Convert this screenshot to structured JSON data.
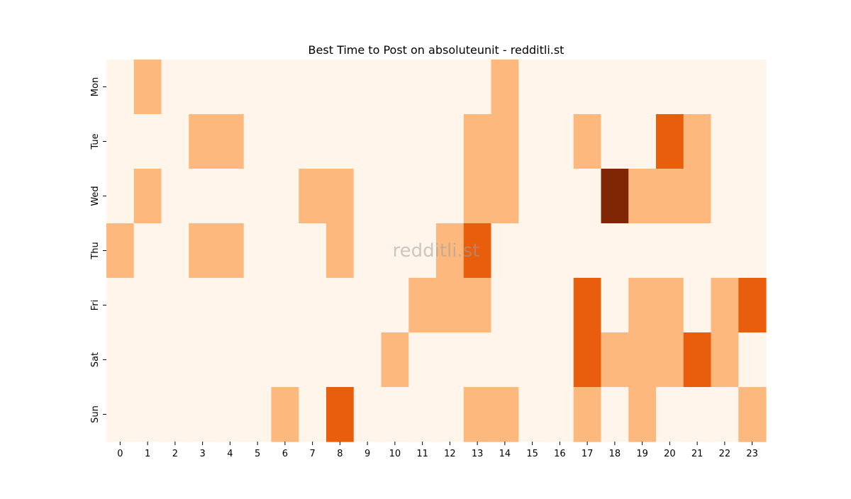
{
  "chart_data": {
    "type": "heatmap",
    "title": "Best Time to Post on absoluteunit - redditli.st",
    "watermark": "redditli.st",
    "x_categories": [
      "0",
      "1",
      "2",
      "3",
      "4",
      "5",
      "6",
      "7",
      "8",
      "9",
      "10",
      "11",
      "12",
      "13",
      "14",
      "15",
      "16",
      "17",
      "18",
      "19",
      "20",
      "21",
      "22",
      "23"
    ],
    "y_categories": [
      "Mon",
      "Tue",
      "Wed",
      "Thu",
      "Fri",
      "Sat",
      "Sun"
    ],
    "values": [
      [
        0,
        1,
        0,
        0,
        0,
        0,
        0,
        0,
        0,
        0,
        0,
        0,
        0,
        0,
        1,
        0,
        0,
        0,
        0,
        0,
        0,
        0,
        0,
        0
      ],
      [
        0,
        0,
        0,
        1,
        1,
        0,
        0,
        0,
        0,
        0,
        0,
        0,
        0,
        1,
        1,
        0,
        0,
        1,
        0,
        0,
        2,
        1,
        0,
        0
      ],
      [
        0,
        1,
        0,
        0,
        0,
        0,
        0,
        1,
        1,
        0,
        0,
        0,
        0,
        1,
        1,
        0,
        0,
        0,
        3,
        1,
        1,
        1,
        0,
        0
      ],
      [
        1,
        0,
        0,
        1,
        1,
        0,
        0,
        0,
        1,
        0,
        0,
        0,
        1,
        2,
        0,
        0,
        0,
        0,
        0,
        0,
        0,
        0,
        0,
        0
      ],
      [
        0,
        0,
        0,
        0,
        0,
        0,
        0,
        0,
        0,
        0,
        0,
        1,
        1,
        1,
        0,
        0,
        0,
        2,
        0,
        1,
        1,
        0,
        1,
        2
      ],
      [
        0,
        0,
        0,
        0,
        0,
        0,
        0,
        0,
        0,
        0,
        1,
        0,
        0,
        0,
        0,
        0,
        0,
        2,
        1,
        1,
        1,
        2,
        1,
        0
      ],
      [
        0,
        0,
        0,
        0,
        0,
        0,
        1,
        0,
        2,
        0,
        0,
        0,
        0,
        1,
        1,
        0,
        0,
        1,
        0,
        1,
        0,
        0,
        0,
        1
      ]
    ],
    "colormap": "Oranges",
    "level_colors": [
      "#fff5eb",
      "#fdb97d",
      "#e95e0d",
      "#7f2704"
    ]
  }
}
